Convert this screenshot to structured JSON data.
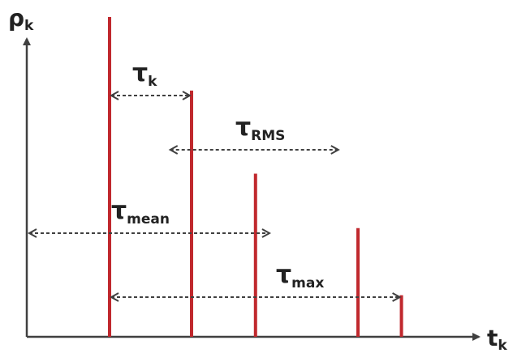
{
  "axes": {
    "y_label": "ρ",
    "y_label_sub": "k",
    "x_label": "t",
    "x_label_sub": "k"
  },
  "colors": {
    "axis": "#404040",
    "tap": "#c0282d",
    "arrow": "#404040",
    "text": "#222222"
  },
  "taps": [
    {
      "t": 0,
      "amplitude": 1.0
    },
    {
      "t": 1,
      "amplitude": 0.77
    },
    {
      "t": 1.78,
      "amplitude": 0.51
    },
    {
      "t": 3.03,
      "amplitude": 0.34
    },
    {
      "t": 3.56,
      "amplitude": 0.13
    }
  ],
  "spreads": [
    {
      "name": "tau_k",
      "symbol": "τ",
      "sub": "k",
      "from": 0,
      "to": 1
    },
    {
      "name": "tau_rms",
      "symbol": "τ",
      "sub": "RMS",
      "from": 0.72,
      "to": 2.81
    },
    {
      "name": "tau_mean",
      "symbol": "τ",
      "sub": "mean",
      "from": -1.0,
      "to": 1.97
    },
    {
      "name": "tau_max",
      "symbol": "τ",
      "sub": "max",
      "from": 0,
      "to": 3.56
    }
  ]
}
